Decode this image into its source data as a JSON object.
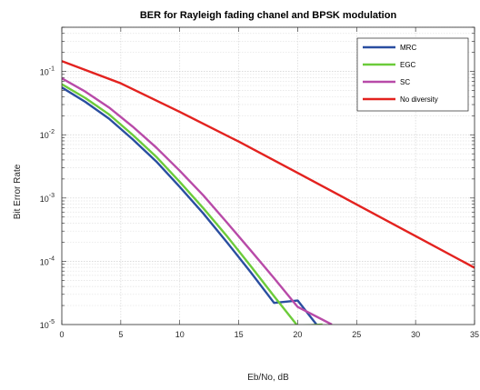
{
  "chart_data": {
    "type": "line",
    "title": "BER for Rayleigh fading chanel and BPSK modulation",
    "xlabel": "Eb/No, dB",
    "ylabel": "Bit Error Rate",
    "xlim": [
      0,
      35
    ],
    "ylim": [
      1e-05,
      0.5
    ],
    "yscale": "log",
    "grid": true,
    "legend_position": "top-right",
    "x_ticks": [
      0,
      5,
      10,
      15,
      20,
      25,
      30,
      35
    ],
    "y_ticks": [
      {
        "value": 0.1,
        "base": "10",
        "exp": "-1"
      },
      {
        "value": 0.01,
        "base": "10",
        "exp": "-2"
      },
      {
        "value": 0.001,
        "base": "10",
        "exp": "-3"
      },
      {
        "value": 0.0001,
        "base": "10",
        "exp": "-4"
      },
      {
        "value": 1e-05,
        "base": "10",
        "exp": "-5"
      }
    ],
    "series": [
      {
        "name": "MRC",
        "color": "#2a4ea0",
        "x": [
          0,
          2,
          4,
          6,
          8,
          10,
          12,
          14,
          16,
          18,
          20,
          21.6
        ],
        "y": [
          0.056,
          0.033,
          0.018,
          0.0085,
          0.0038,
          0.0015,
          0.00057,
          0.0002,
          6.8e-05,
          2.2e-05,
          2.4e-05,
          1e-05
        ]
      },
      {
        "name": "EGC",
        "color": "#6ccb3a",
        "x": [
          0,
          2,
          4,
          6,
          8,
          10,
          12,
          14,
          16,
          18,
          20,
          22.1
        ],
        "y": [
          0.063,
          0.038,
          0.021,
          0.01,
          0.0045,
          0.0018,
          0.00069,
          0.00025,
          8.5e-05,
          2.8e-05,
          9.5e-06,
          1e-05
        ]
      },
      {
        "name": "SC",
        "color": "#b84aa8",
        "x": [
          0,
          2,
          4,
          6,
          8,
          10,
          12,
          14,
          16,
          18,
          20,
          22.9
        ],
        "y": [
          0.078,
          0.048,
          0.027,
          0.0135,
          0.0063,
          0.0027,
          0.0011,
          0.00041,
          0.00015,
          5.4e-05,
          1.9e-05,
          1e-05
        ]
      },
      {
        "name": "No diversity",
        "color": "#e3221f",
        "x": [
          0,
          5,
          10,
          15,
          20,
          25,
          30,
          35
        ],
        "y": [
          0.146,
          0.065,
          0.023,
          0.0078,
          0.0025,
          0.00079,
          0.00025,
          7.9e-05
        ]
      }
    ]
  }
}
